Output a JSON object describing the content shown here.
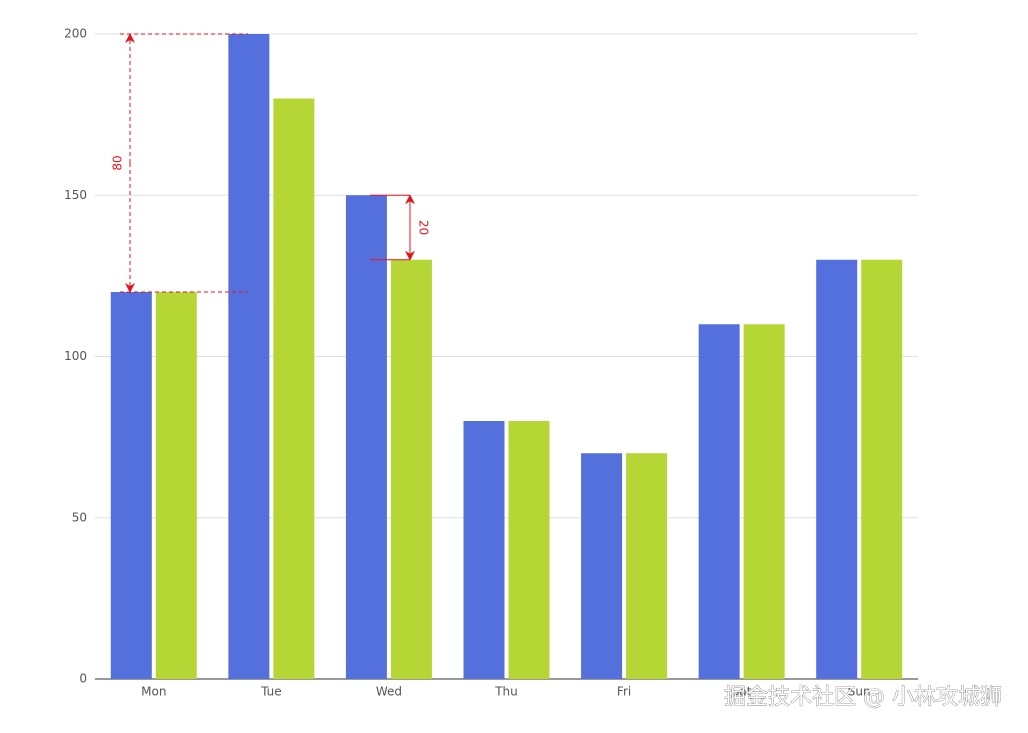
{
  "chart_data": {
    "type": "bar",
    "categories": [
      "Mon",
      "Tue",
      "Wed",
      "Thu",
      "Fri",
      "Sat",
      "Sun"
    ],
    "series": [
      {
        "color": "#5470dc",
        "values": [
          120,
          200,
          150,
          80,
          70,
          110,
          130
        ]
      },
      {
        "color": "#b5d634",
        "values": [
          120,
          180,
          130,
          80,
          70,
          110,
          130
        ]
      }
    ],
    "ylim": [
      0,
      200
    ],
    "yticks": [
      0,
      50,
      100,
      150,
      200
    ],
    "grid": true,
    "annotations": [
      80,
      20
    ],
    "annotation_color": "#e8141c",
    "watermark": "掘金技术社区 @ 小林攻城狮"
  }
}
